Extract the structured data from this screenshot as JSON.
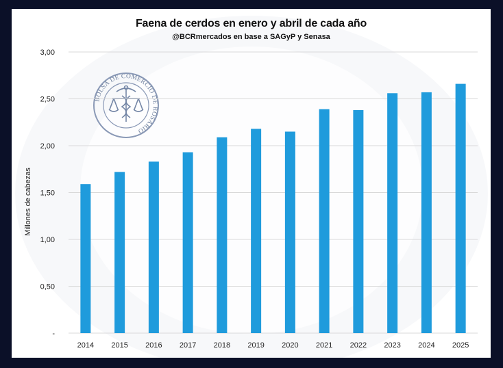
{
  "chart_data": {
    "type": "bar",
    "title": "Faena de cerdos en enero y abril de cada año",
    "subtitle": "@BCRmercados en base a SAGyP y Senasa",
    "xlabel": "",
    "ylabel": "Millones de cabezas",
    "categories": [
      "2014",
      "2015",
      "2016",
      "2017",
      "2018",
      "2019",
      "2020",
      "2021",
      "2022",
      "2023",
      "2024",
      "2025"
    ],
    "values": [
      1.59,
      1.72,
      1.83,
      1.93,
      2.09,
      2.18,
      2.15,
      2.39,
      2.38,
      2.56,
      2.57,
      2.66
    ],
    "ylim": [
      0,
      3.0
    ],
    "yticks": [
      0,
      0.5,
      1.0,
      1.5,
      2.0,
      2.5,
      3.0
    ],
    "ytick_labels": [
      "-",
      "0,50",
      "1,00",
      "1,50",
      "2,00",
      "2,50",
      "3,00"
    ],
    "grid": true,
    "legend": "none",
    "bar_color": "#1f9bdc",
    "grid_color": "#d9d9d9"
  },
  "watermark": {
    "logo_text": "BOLSA DE COMERCIO DE ROSARIO",
    "logo_icon": "caduceus-scales-icon"
  }
}
